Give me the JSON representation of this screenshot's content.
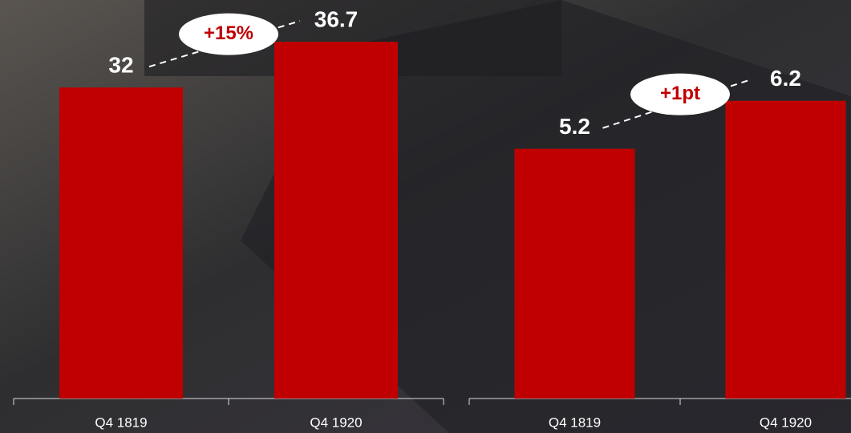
{
  "chart_data": [
    {
      "type": "bar",
      "categories": [
        "Q4 1819",
        "Q4 1920"
      ],
      "values": [
        32,
        36.7
      ],
      "color": "#c00000",
      "ylim": [
        0,
        41
      ],
      "annotation": "+15%"
    },
    {
      "type": "bar",
      "categories": [
        "Q4 1819",
        "Q4 1920"
      ],
      "values": [
        5.2,
        6.2
      ],
      "color": "#c00000",
      "ylim": [
        0,
        8.3
      ],
      "annotation": "+1pt"
    }
  ]
}
